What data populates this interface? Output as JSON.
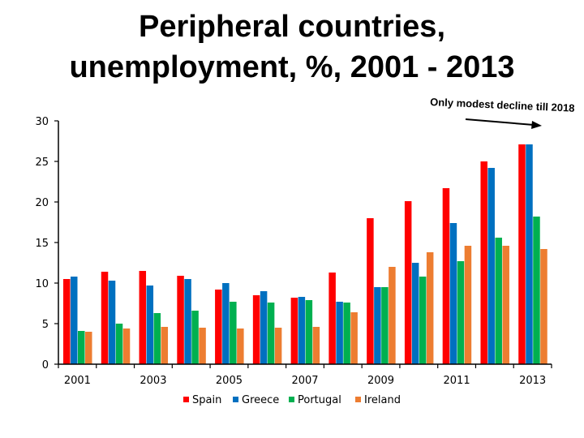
{
  "chart_data": {
    "type": "bar",
    "title_line1": "Peripheral countries,",
    "title_line2": "unemployment, %, 2001 - 2013",
    "categories": [
      "2001",
      "2002",
      "2003",
      "2004",
      "2005",
      "2006",
      "2007",
      "2008",
      "2009",
      "2010",
      "2011",
      "2012",
      "2013"
    ],
    "x_tick_labels": [
      "2001",
      "",
      "2003",
      "",
      "2005",
      "",
      "2007",
      "",
      "2009",
      "",
      "2011",
      "",
      "2013"
    ],
    "yticks": [
      0,
      5,
      10,
      15,
      20,
      25,
      30
    ],
    "ylim": [
      0,
      30
    ],
    "series": [
      {
        "name": "Spain",
        "color": "#ff0000",
        "values": [
          10.5,
          11.4,
          11.5,
          10.9,
          9.2,
          8.5,
          8.2,
          11.3,
          18.0,
          20.1,
          21.7,
          25.0,
          27.1
        ]
      },
      {
        "name": "Greece",
        "color": "#0070c0",
        "values": [
          10.8,
          10.3,
          9.7,
          10.5,
          10.0,
          9.0,
          8.3,
          7.7,
          9.5,
          12.5,
          17.4,
          24.2,
          27.1
        ]
      },
      {
        "name": "Portugal",
        "color": "#00b050",
        "values": [
          4.1,
          5.0,
          6.3,
          6.6,
          7.7,
          7.6,
          7.9,
          7.6,
          9.5,
          10.8,
          12.7,
          15.6,
          18.2
        ]
      },
      {
        "name": "Ireland",
        "color": "#ed7d31",
        "values": [
          4.0,
          4.4,
          4.6,
          4.5,
          4.4,
          4.5,
          4.6,
          6.4,
          12.0,
          13.8,
          14.6,
          14.6,
          14.2
        ]
      }
    ],
    "annotation": "Only modest decline till 2018",
    "legend_position": "bottom",
    "grid": false
  }
}
